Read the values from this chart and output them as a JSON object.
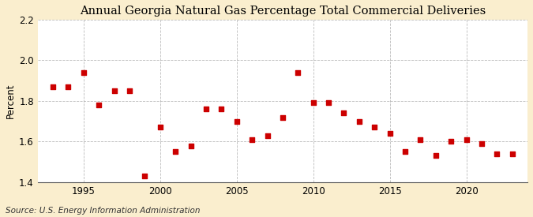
{
  "title": "Annual Georgia Natural Gas Percentage Total Commercial Deliveries",
  "ylabel": "Percent",
  "source": "Source: U.S. Energy Information Administration",
  "years": [
    1993,
    1994,
    1995,
    1996,
    1997,
    1998,
    1999,
    2000,
    2001,
    2002,
    2003,
    2004,
    2005,
    2006,
    2007,
    2008,
    2009,
    2010,
    2011,
    2012,
    2013,
    2014,
    2015,
    2016,
    2017,
    2018,
    2019,
    2020,
    2021,
    2022,
    2023
  ],
  "values": [
    1.87,
    1.87,
    1.94,
    1.78,
    1.85,
    1.85,
    1.43,
    1.67,
    1.55,
    1.58,
    1.76,
    1.76,
    1.7,
    1.61,
    1.63,
    1.72,
    1.94,
    1.79,
    1.79,
    1.74,
    1.7,
    1.67,
    1.64,
    1.55,
    1.61,
    1.53,
    1.6,
    1.61,
    1.59,
    1.54,
    1.54
  ],
  "marker_color": "#cc0000",
  "marker_size": 14,
  "background_color": "#faeece",
  "plot_background": "#ffffff",
  "xlim": [
    1992,
    2024
  ],
  "ylim": [
    1.4,
    2.2
  ],
  "yticks": [
    1.4,
    1.6,
    1.8,
    2.0,
    2.2
  ],
  "xticks": [
    1995,
    2000,
    2005,
    2010,
    2015,
    2020
  ],
  "grid_color": "#aaaaaa",
  "title_fontsize": 10.5,
  "axis_fontsize": 8.5,
  "source_fontsize": 7.5
}
